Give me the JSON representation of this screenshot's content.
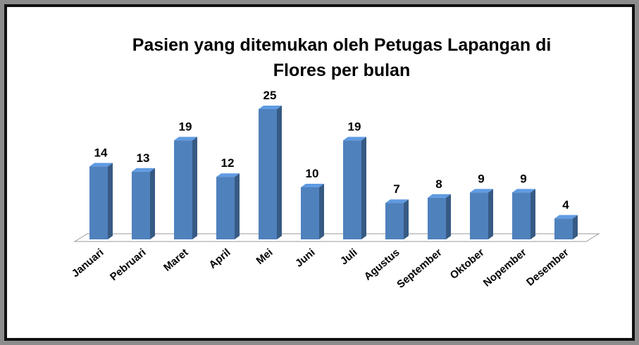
{
  "chart_data": {
    "type": "bar3d",
    "title": "Pasien yang ditemukan oleh Petugas Lapangan di Flores per bulan",
    "categories": [
      "Januari",
      "Pebruari",
      "Maret",
      "April",
      "Mei",
      "Juni",
      "Juli",
      "Agustus",
      "September",
      "Oktober",
      "Nopember",
      "Desember"
    ],
    "values": [
      14,
      13,
      19,
      12,
      25,
      10,
      19,
      7,
      8,
      9,
      9,
      4
    ],
    "color": "#4f81bd"
  }
}
